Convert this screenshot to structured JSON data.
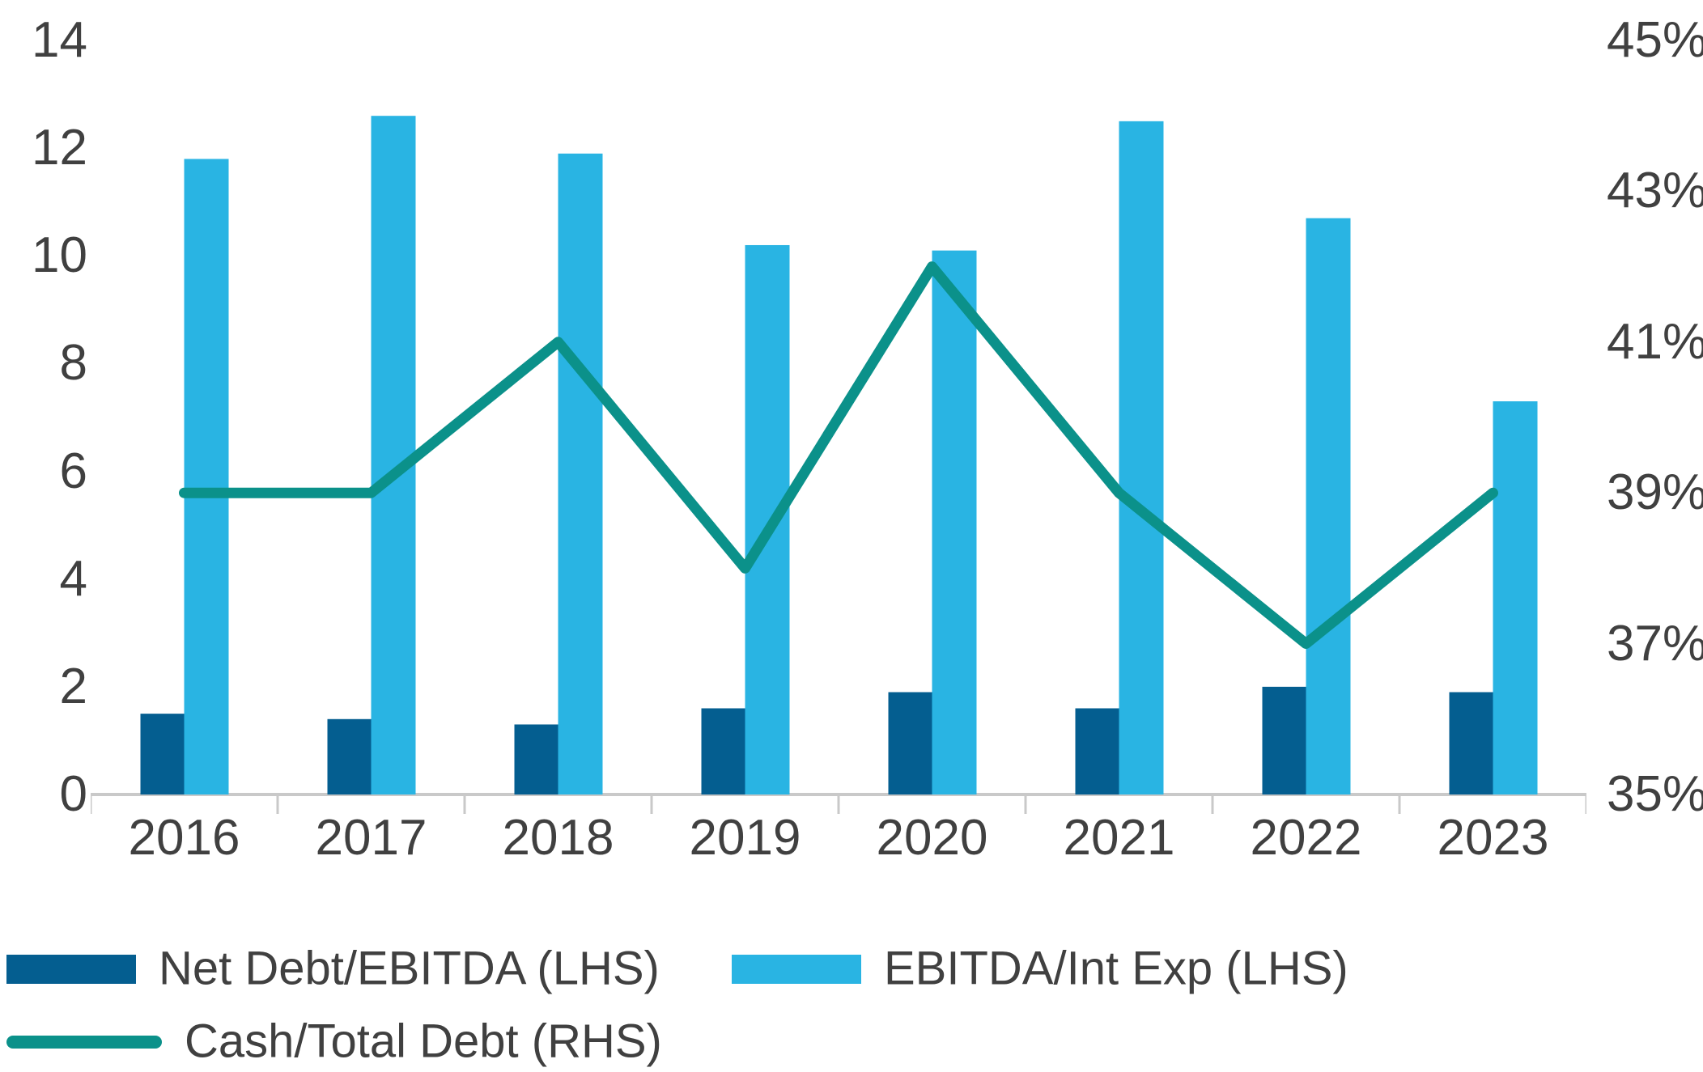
{
  "colors": {
    "net_debt_bar": "#045E90",
    "ebitda_bar": "#29B4E3",
    "cash_line": "#0B918A",
    "axis_text": "#404040",
    "axis_line": "#C9C9C9",
    "background": "#FFFFFF"
  },
  "chart_data": {
    "type": "bar",
    "subtype": "dual-axis bar and line combo",
    "title": "",
    "xlabel": "",
    "ylabel_left": "",
    "ylabel_right": "",
    "grid": false,
    "legend_position": "bottom-left",
    "categories": [
      "2016",
      "2017",
      "2018",
      "2019",
      "2020",
      "2021",
      "2022",
      "2023"
    ],
    "series": [
      {
        "name": "Net Debt/EBITDA (LHS)",
        "type": "bar",
        "axis": "left",
        "color": "#045E90",
        "values": [
          1.5,
          1.4,
          1.3,
          1.6,
          1.9,
          1.6,
          2.0,
          1.9
        ]
      },
      {
        "name": "EBITDA/Int Exp (LHS)",
        "type": "bar",
        "axis": "left",
        "color": "#29B4E3",
        "values": [
          11.8,
          12.6,
          11.9,
          10.2,
          10.1,
          12.5,
          10.7,
          7.3
        ]
      },
      {
        "name": "Cash/Total Debt (RHS)",
        "type": "line",
        "axis": "right",
        "color": "#0B918A",
        "values": [
          39,
          39,
          41,
          38,
          42,
          39,
          37,
          39
        ],
        "unit": "%"
      }
    ],
    "left_axis": {
      "min": 0,
      "max": 14,
      "step": 2,
      "ticks": [
        "0",
        "2",
        "4",
        "6",
        "8",
        "10",
        "12",
        "14"
      ]
    },
    "right_axis": {
      "min": 35,
      "max": 45,
      "step": 2,
      "ticks": [
        "35%",
        "37%",
        "39%",
        "41%",
        "43%",
        "45%"
      ]
    }
  },
  "legend": {
    "items": [
      {
        "label": "Net Debt/EBITDA (LHS)",
        "color": "#045E90",
        "swatch": "bar"
      },
      {
        "label": "EBITDA/Int Exp (LHS)",
        "color": "#29B4E3",
        "swatch": "bar"
      },
      {
        "label": "Cash/Total Debt (RHS)",
        "color": "#0B918A",
        "swatch": "line"
      }
    ]
  }
}
